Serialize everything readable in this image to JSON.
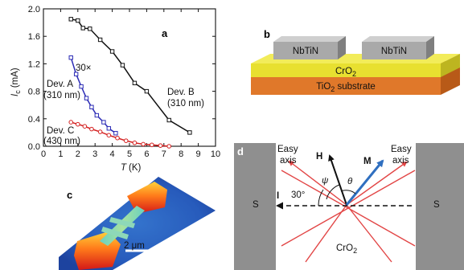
{
  "panels": {
    "a": {
      "label": "a",
      "x_axis_label": "T",
      "x_axis_unit": "(K)",
      "y_axis_label": "I",
      "y_axis_sub": "c",
      "y_axis_unit": "(mA)",
      "magnification": "30×",
      "dev_a": "Dev. A",
      "dev_a_width": "(310 nm)",
      "dev_b": "Dev. B",
      "dev_b_width": "(310 nm)",
      "dev_c": "Dev. C",
      "dev_c_width": "(430 nm)"
    },
    "b": {
      "label": "b",
      "electrode_left": "NbTiN",
      "electrode_right": "NbTiN",
      "film": "CrO",
      "film_sub": "2",
      "substrate": "TiO",
      "substrate_sub": "2",
      "substrate_suffix": " substrate"
    },
    "c": {
      "label": "c",
      "scale_bar": "2 μm"
    },
    "d": {
      "label": "d",
      "easy_axis_left_1": "Easy",
      "easy_axis_left_2": "axis",
      "easy_axis_right_1": "Easy",
      "easy_axis_right_2": "axis",
      "h_label": "H",
      "m_label": "M",
      "psi": "ψ",
      "theta": "θ",
      "current_label": "I",
      "angle_label": "30°",
      "s_left": "S",
      "s_right": "S",
      "material": "CrO",
      "material_sub": "2"
    }
  },
  "colors": {
    "dev_a": "#2b2bb5",
    "dev_b": "#111111",
    "dev_c": "#d42020",
    "easy_axis": "#e24545",
    "m_arrow": "#2f6fc0",
    "s_block": "#8f8f8f",
    "nbtin": "#a9a9a9",
    "cro2": "#e8e030",
    "tio2": "#e0782a"
  },
  "chart_data": {
    "type": "line",
    "xlabel": "T (K)",
    "ylabel": "Ic (mA)",
    "xlim": [
      0,
      10
    ],
    "ylim": [
      0,
      2.0
    ],
    "x_ticks": [
      0,
      1,
      2,
      3,
      4,
      5,
      6,
      7,
      8,
      9,
      10
    ],
    "y_ticks": [
      "0.0",
      "0.4",
      "0.8",
      "1.2",
      "1.6",
      "2.0"
    ],
    "grid": false,
    "series": [
      {
        "name": "Dev. A (310 nm)",
        "color": "#2b2bb5",
        "marker": "square",
        "x": [
          1.6,
          1.9,
          2.2,
          2.5,
          2.8,
          3.1,
          3.5,
          3.8,
          4.2
        ],
        "y": [
          1.29,
          1.05,
          0.87,
          0.7,
          0.57,
          0.45,
          0.35,
          0.26,
          0.19
        ]
      },
      {
        "name": "Dev. B (310 nm)",
        "color": "#111111",
        "marker": "square",
        "x": [
          1.6,
          2.0,
          2.3,
          2.7,
          3.3,
          4.0,
          4.6,
          5.3,
          6.0,
          7.3,
          8.5
        ],
        "y": [
          1.85,
          1.83,
          1.72,
          1.71,
          1.55,
          1.38,
          1.18,
          0.92,
          0.8,
          0.38,
          0.2
        ]
      },
      {
        "name": "Dev. C (430 nm)",
        "color": "#d42020",
        "marker": "circle",
        "x": [
          1.6,
          2.0,
          2.4,
          2.8,
          3.3,
          3.8,
          4.3,
          4.8,
          5.3,
          5.8,
          6.3,
          6.8,
          7.3
        ],
        "y": [
          0.35,
          0.32,
          0.29,
          0.25,
          0.21,
          0.16,
          0.12,
          0.08,
          0.05,
          0.03,
          0.02,
          0.01,
          0.0
        ]
      }
    ]
  }
}
